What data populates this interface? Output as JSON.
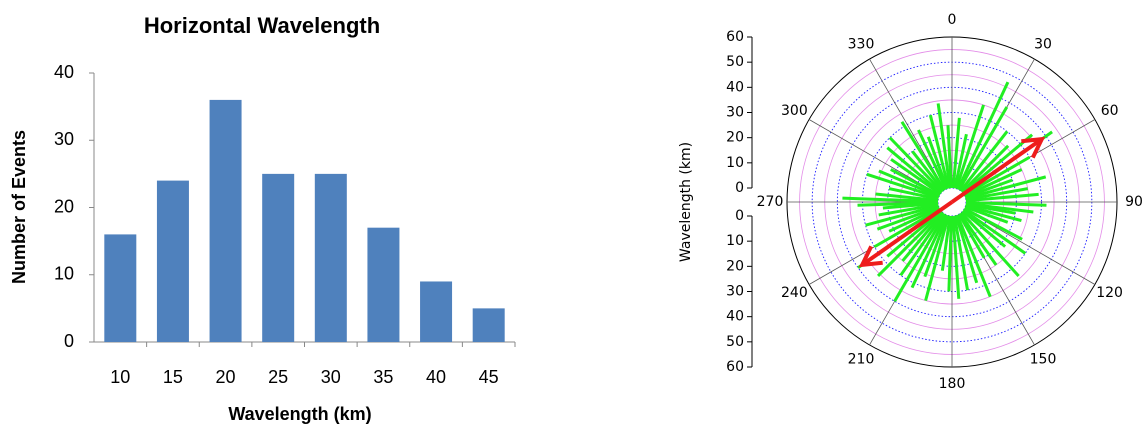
{
  "chart_data": [
    {
      "type": "bar",
      "title": "Horizontal Wavelength",
      "xlabel": "Wavelength (km)",
      "ylabel": "Number of Events",
      "categories": [
        "10",
        "15",
        "20",
        "25",
        "30",
        "35",
        "40",
        "45"
      ],
      "values": [
        16,
        24,
        36,
        25,
        25,
        17,
        9,
        5
      ],
      "color": "#4f81bd",
      "ylim": [
        0,
        40
      ],
      "yticks": [
        0,
        10,
        20,
        30,
        40
      ]
    },
    {
      "type": "polar",
      "ylabel": "Wavelength (km)",
      "rlim": [
        0,
        60
      ],
      "rticks": [
        0,
        10,
        20,
        30,
        40,
        50,
        60
      ],
      "rminorticks": [
        5,
        15,
        25,
        35,
        45,
        55
      ],
      "thetaticks": [
        0,
        30,
        60,
        90,
        120,
        150,
        180,
        210,
        240,
        270,
        300,
        330
      ],
      "series": [
        {
          "color": "#22ee22",
          "theta": [
            5,
            12,
            18,
            25,
            30,
            38,
            45,
            50,
            55,
            60,
            65,
            70,
            75,
            80,
            85,
            92,
            97,
            100,
            105,
            110,
            118,
            125,
            130,
            138,
            145,
            150,
            158,
            163,
            170,
            176,
            182,
            188,
            195,
            200,
            205,
            210,
            215,
            220,
            225,
            230,
            235,
            240,
            245,
            250,
            255,
            260,
            265,
            268,
            272,
            276,
            282,
            288,
            293,
            298,
            305,
            310,
            316,
            322,
            328,
            335,
            340,
            346,
            352,
            357
          ],
          "r": [
            28,
            22,
            35,
            47,
            38,
            30,
            26,
            36,
            43,
            30,
            25,
            20,
            33,
            25,
            29,
            32,
            27,
            20,
            23,
            18,
            26,
            30,
            22,
            34,
            25,
            20,
            35,
            28,
            30,
            33,
            30,
            22,
            35,
            26,
            32,
            40,
            30,
            25,
            36,
            28,
            40,
            30,
            22,
            26,
            30,
            24,
            22,
            32,
            38,
            25,
            20,
            30,
            26,
            22,
            24,
            28,
            30,
            20,
            32,
            26,
            22,
            30,
            34,
            25
          ]
        }
      ],
      "arrow": {
        "color": "#ee1c1c",
        "theta": [
          55,
          235
        ],
        "r": [
          38,
          38
        ]
      }
    }
  ]
}
